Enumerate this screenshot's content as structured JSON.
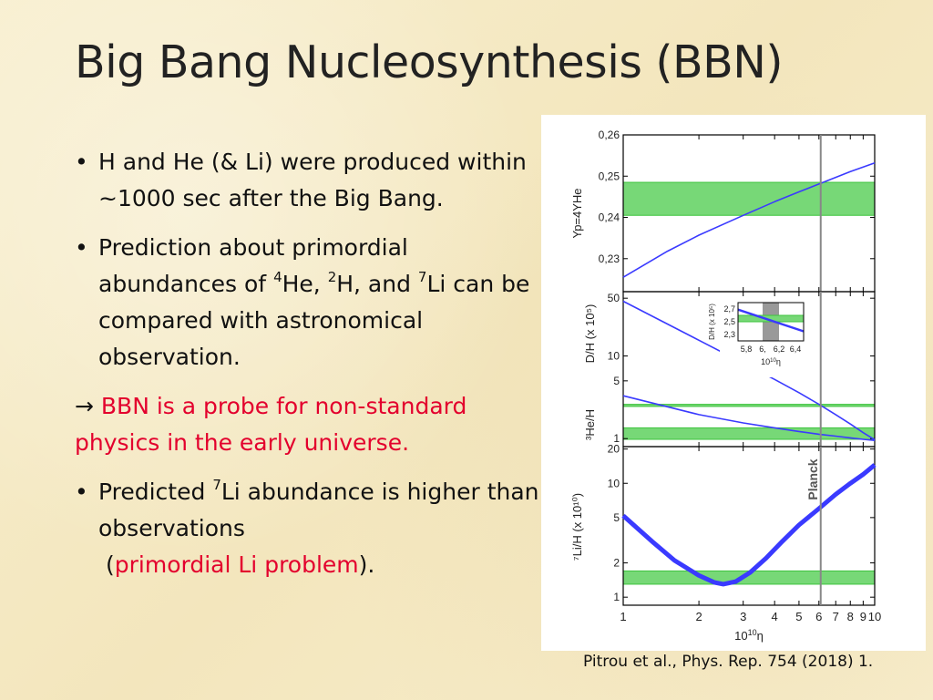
{
  "title": "Big Bang Nucleosynthesis (BBN)",
  "bullets": {
    "b1": {
      "text": "H and He (& Li) were produced within ~1000 sec after the Big Bang."
    },
    "b2": {
      "t1": "Prediction about primordial abundances of ",
      "s1": "4",
      "t2": "He, ",
      "s2": "2",
      "t3": "H, and ",
      "s3": "7",
      "t4": "Li can be compared with astronomical observation."
    },
    "arrow": {
      "arrow": "→ ",
      "text": "BBN is a probe for non-standard physics in the early universe."
    },
    "b3": {
      "t1": "Predicted ",
      "s1": "7",
      "t2": "Li abundance is higher than observations",
      "p_open": "(",
      "red": "primordial Li problem",
      "p_close": ")."
    },
    "bullet_char": "•"
  },
  "citation": "Pitrou et al., Phys. Rep. 754 (2018) 1.",
  "colors": {
    "curve": "#3a3aff",
    "band": "#3ec43e",
    "band_fill": "#77d877",
    "planck_line": "#888888",
    "red_text": "#e3002d"
  },
  "figure": {
    "x_axis": {
      "label_base": "10",
      "label_sup": "10",
      "label_eta": "η",
      "range": [
        1,
        10
      ],
      "scale": "log",
      "ticks": [
        "1",
        "2",
        "3",
        "4",
        "5",
        "6",
        "7",
        "8",
        "9",
        "10"
      ]
    },
    "planck_label": "Planck",
    "planck_eta": 6.1,
    "panels": [
      {
        "id": "yp",
        "ylabel": "Yp=4YHe",
        "scale": "linear",
        "ylim": [
          0.222,
          0.26
        ],
        "ticks": [
          "0,23",
          "0,24",
          "0,25",
          "0,26"
        ],
        "tick_values": [
          0.23,
          0.24,
          0.25,
          0.26
        ],
        "band": [
          0.2405,
          0.2485
        ],
        "curves": [
          {
            "name": "Yp",
            "x": [
              1,
              1.5,
              2,
              3,
              4,
              5,
              6,
              7,
              8,
              9,
              10
            ],
            "y": [
              0.2255,
              0.2318,
              0.2357,
              0.2405,
              0.2438,
              0.2462,
              0.2481,
              0.2497,
              0.2511,
              0.2522,
              0.2532
            ]
          }
        ]
      },
      {
        "id": "dh",
        "ylabel_top": "D/H   (x 10⁵)",
        "ylabel_bottom": "³He/H",
        "scale": "log",
        "ylim": [
          0.8,
          60
        ],
        "ticks": [
          "1",
          "5",
          "10",
          "50"
        ],
        "tick_values": [
          1,
          5,
          10,
          50
        ],
        "bands": [
          [
            0.98,
            1.35
          ],
          [
            2.45,
            2.6
          ]
        ],
        "curves": [
          {
            "name": "D/H",
            "x": [
              1,
              2,
              3,
              4,
              5,
              6,
              7,
              8,
              9,
              10
            ],
            "y": [
              46,
              15.5,
              8.2,
              5.2,
              3.6,
              2.6,
              1.95,
              1.5,
              1.18,
              0.97
            ]
          },
          {
            "name": "3He/H",
            "x": [
              1,
              2,
              3,
              4,
              5,
              6,
              7,
              8,
              9,
              10
            ],
            "y": [
              3.3,
              1.95,
              1.55,
              1.35,
              1.22,
              1.13,
              1.07,
              1.02,
              0.98,
              0.95
            ]
          }
        ],
        "inset": {
          "ylabel": "D/H  (x 10⁵)",
          "xlabel_base": "10",
          "xlabel_sup": "10",
          "xlabel_eta": "η",
          "xticks": [
            "5,8",
            "6,",
            "6,2",
            "6,4"
          ],
          "xtick_values": [
            5.8,
            6.0,
            6.2,
            6.4
          ],
          "yticks": [
            "2,3",
            "2,5",
            "2,7"
          ],
          "ytick_values": [
            2.3,
            2.5,
            2.7
          ],
          "xlim": [
            5.7,
            6.5
          ],
          "ylim": [
            2.2,
            2.8
          ],
          "band": [
            2.5,
            2.6
          ],
          "planck_band": [
            6.0,
            6.2
          ],
          "curve": {
            "x": [
              5.7,
              6.5
            ],
            "y": [
              2.69,
              2.35
            ]
          }
        }
      },
      {
        "id": "li",
        "ylabel": "⁷Li/H  (x 10¹⁰)",
        "scale": "log",
        "ylim": [
          0.85,
          21
        ],
        "ticks": [
          "1",
          "2",
          "5",
          "10",
          "20"
        ],
        "tick_values": [
          1,
          2,
          5,
          10,
          20
        ],
        "band": [
          1.3,
          1.7
        ],
        "curves": [
          {
            "name": "Li7",
            "x": [
              1,
              1.3,
              1.6,
              2,
              2.3,
              2.5,
              2.8,
              3.2,
              3.7,
              4.3,
              5,
              6,
              7,
              8,
              9,
              10
            ],
            "y": [
              5.2,
              3.1,
              2.1,
              1.55,
              1.35,
              1.3,
              1.37,
              1.65,
              2.2,
              3.1,
              4.3,
              6.0,
              8.0,
              10.0,
              12.0,
              14.5
            ]
          }
        ]
      }
    ]
  }
}
